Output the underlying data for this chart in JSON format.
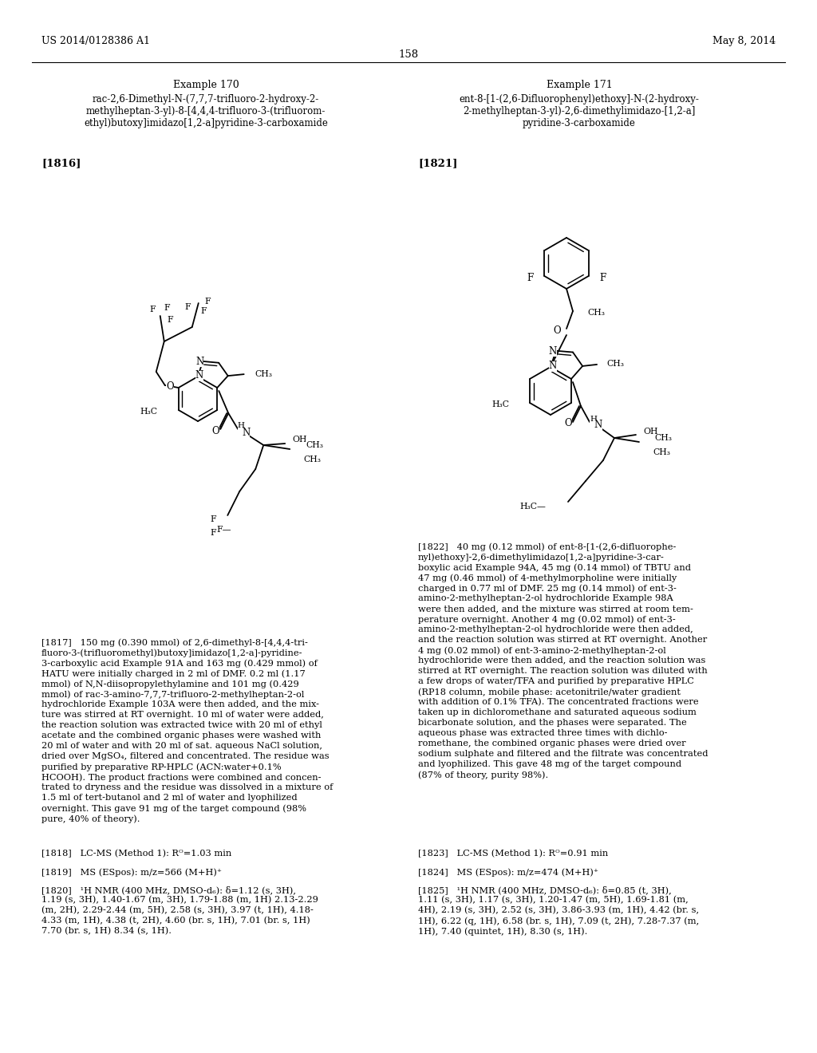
{
  "background_color": "#ffffff",
  "header_left": "US 2014/0128386 A1",
  "header_right": "May 8, 2014",
  "page_number": "158",
  "example_170_title": "Example 170",
  "example_171_title": "Example 171",
  "example_170_name": "rac-2,6-Dimethyl-N-(7,7,7-trifluoro-2-hydroxy-2-\nmethylheptan-3-yl)-8-[4,4,4-trifluoro-3-(trifluorom-\nethyl)butoxy]imidazo[1,2-a]pyridine-3-carboxamide",
  "example_171_name": "ent-8-[1-(2,6-Difluorophenyl)ethoxy]-N-(2-hydroxy-\n2-methylheptan-3-yl)-2,6-dimethylimidazo-[1,2-a]\npyridine-3-carboxamide",
  "ref_1816": "[1816]",
  "ref_1821": "[1821]",
  "ref_1817_text": "[1817]   150 mg (0.390 mmol) of 2,6-dimethyl-8-[4,4,4-tri-\nfluoro-3-(trifluoromethyl)butoxy]imidazo[1,2-a]-pyridine-\n3-carboxylic acid Example 91A and 163 mg (0.429 mmol) of\nHATU were initially charged in 2 ml of DMF. 0.2 ml (1.17\nmmol) of N,N-diisopropylethylamine and 101 mg (0.429\nmmol) of rac-3-amino-7,7,7-trifluoro-2-methylheptan-2-ol\nhydrochloride Example 103A were then added, and the mix-\nture was stirred at RT overnight. 10 ml of water were added,\nthe reaction solution was extracted twice with 20 ml of ethyl\nacetate and the combined organic phases were washed with\n20 ml of water and with 20 ml of sat. aqueous NaCl solution,\ndried over MgSO₄, filtered and concentrated. The residue was\npurified by preparative RP-HPLC (ACN:water+0.1%\nHCOOH). The product fractions were combined and concen-\ntrated to dryness and the residue was dissolved in a mixture of\n1.5 ml of tert-butanol and 2 ml of water and lyophilized\novernight. This gave 91 mg of the target compound (98%\npure, 40% of theory).",
  "ref_1818_text": "[1818]   LC-MS (Method 1): Rᴼ=1.03 min",
  "ref_1819_text": "[1819]   MS (ESpos): m/z=566 (M+H)⁺",
  "ref_1820_text": "[1820]   ¹H NMR (400 MHz, DMSO-d₆): δ=1.12 (s, 3H),\n1.19 (s, 3H), 1.40-1.67 (m, 3H), 1.79-1.88 (m, 1H) 2.13-2.29\n(m, 2H), 2.29-2.44 (m, 5H), 2.58 (s, 3H), 3.97 (t, 1H), 4.18-\n4.33 (m, 1H), 4.38 (t, 2H), 4.60 (br. s, 1H), 7.01 (br. s, 1H)\n7.70 (br. s, 1H) 8.34 (s, 1H).",
  "ref_1822_text": "[1822]   40 mg (0.12 mmol) of ent-8-[1-(2,6-difluorophe-\nnyl)ethoxy]-2,6-dimethylimidazo[1,2-a]pyridine-3-car-\nboxylic acid Example 94A, 45 mg (0.14 mmol) of TBTU and\n47 mg (0.46 mmol) of 4-methylmorpholine were initially\ncharged in 0.77 ml of DMF. 25 mg (0.14 mmol) of ent-3-\namino-2-methylheptan-2-ol hydrochloride Example 98A\nwere then added, and the mixture was stirred at room tem-\nperature overnight. Another 4 mg (0.02 mmol) of ent-3-\namino-2-methylheptan-2-ol hydrochloride were then added,\nand the reaction solution was stirred at RT overnight. Another\n4 mg (0.02 mmol) of ent-3-amino-2-methylheptan-2-ol\nhydrochloride were then added, and the reaction solution was\nstirred at RT overnight. The reaction solution was diluted with\na few drops of water/TFA and purified by preparative HPLC\n(RP18 column, mobile phase: acetonitrile/water gradient\nwith addition of 0.1% TFA). The concentrated fractions were\ntaken up in dichloromethane and saturated aqueous sodium\nbicarbonate solution, and the phases were separated. The\naqueous phase was extracted three times with dichlo-\nromethane, the combined organic phases were dried over\nsodium sulphate and filtered and the filtrate was concentrated\nand lyophilized. This gave 48 mg of the target compound\n(87% of theory, purity 98%).",
  "ref_1823_text": "[1823]   LC-MS (Method 1): Rᴼ=0.91 min",
  "ref_1824_text": "[1824]   MS (ESpos): m/z=474 (M+H)⁺",
  "ref_1825_text": "[1825]   ¹H NMR (400 MHz, DMSO-d₆): δ=0.85 (t, 3H),\n1.11 (s, 3H), 1.17 (s, 3H), 1.20-1.47 (m, 5H), 1.69-1.81 (m,\n4H), 2.19 (s, 3H), 2.52 (s, 3H), 3.86-3.93 (m, 1H), 4.42 (br. s,\n1H), 6.22 (q, 1H), 6.58 (br. s, 1H), 7.09 (t, 2H), 7.28-7.37 (m,\n1H), 7.40 (quintet, 1H), 8.30 (s, 1H)."
}
